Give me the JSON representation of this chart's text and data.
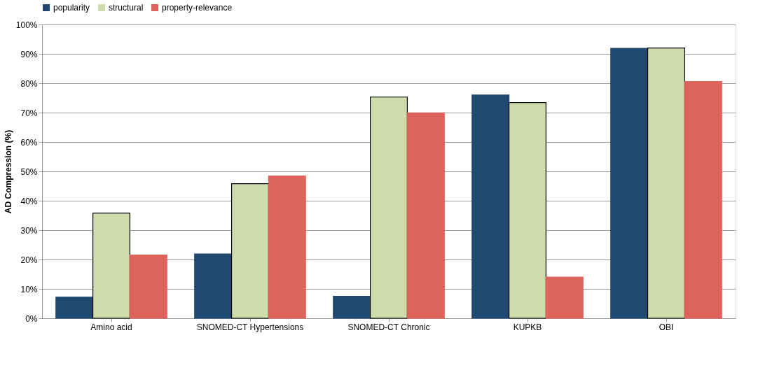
{
  "chart_data": {
    "type": "bar",
    "ylabel": "AD Compression (%)",
    "categories": [
      "Amino acid",
      "SNOMED-CT Hypertensions",
      "SNOMED-CT Chronic",
      "KUPKB",
      "OBI"
    ],
    "series": [
      {
        "name": "popularity",
        "color": "#1f4970",
        "values": [
          7.2,
          21.9,
          7.5,
          76.0,
          91.9
        ]
      },
      {
        "name": "structural",
        "color": "#cddcaa",
        "values": [
          35.8,
          45.8,
          75.3,
          73.4,
          92.0
        ]
      },
      {
        "name": "property-relevance",
        "color": "#dd645c",
        "values": [
          21.5,
          48.4,
          69.9,
          14.0,
          80.6
        ]
      }
    ],
    "ylim": [
      0,
      100
    ],
    "yticks": [
      {
        "value": 0,
        "label": "0%"
      },
      {
        "value": 10,
        "label": "10%"
      },
      {
        "value": 20,
        "label": "20%"
      },
      {
        "value": 30,
        "label": "30%"
      },
      {
        "value": 40,
        "label": "40%"
      },
      {
        "value": 50,
        "label": "50%"
      },
      {
        "value": 60,
        "label": "60%"
      },
      {
        "value": 70,
        "label": "70%"
      },
      {
        "value": 80,
        "label": "80%"
      },
      {
        "value": 90,
        "label": "90%"
      },
      {
        "value": 100,
        "label": "100%"
      }
    ],
    "grid": "y",
    "legend": "top"
  }
}
